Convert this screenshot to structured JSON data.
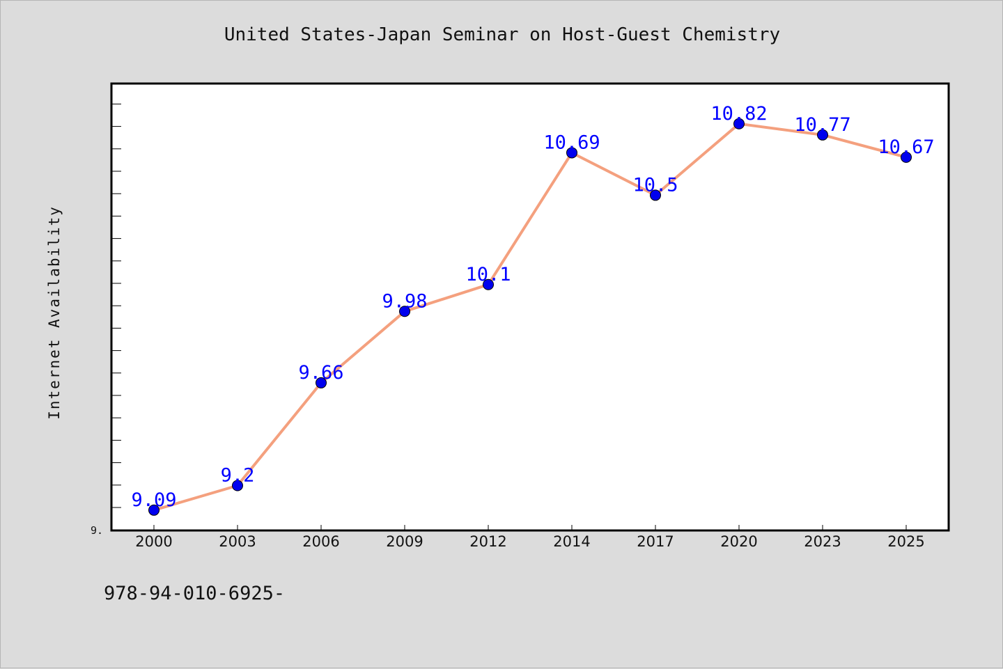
{
  "chart_data": {
    "type": "line",
    "title": "United States-Japan Seminar on Host-Guest Chemistry",
    "xlabel": "",
    "ylabel": "Internet Availability",
    "categories": [
      "2000",
      "2003",
      "2006",
      "2009",
      "2012",
      "2014",
      "2017",
      "2020",
      "2023",
      "2025"
    ],
    "series": [
      {
        "values": [
          9.09,
          9.2,
          9.66,
          9.98,
          10.1,
          10.69,
          10.5,
          10.82,
          10.77,
          10.67
        ],
        "data_labels": [
          "9.09",
          "9.2",
          "9.66",
          "9.98",
          "10.1",
          "10.69",
          "10.5",
          "10.82",
          "10.77",
          "10.67"
        ]
      }
    ],
    "ylim": [
      8.999,
      11.0
    ],
    "y_tick_label": "9.",
    "grid": false,
    "legend": "none",
    "colors": {
      "line": "#f4a07e",
      "marker": "#0000ee",
      "data_label": "#0000ff",
      "plot_bg": "#ffffff",
      "page_bg": "#dcdcdc"
    }
  },
  "footer": {
    "code": "978-94-010-6925-"
  }
}
